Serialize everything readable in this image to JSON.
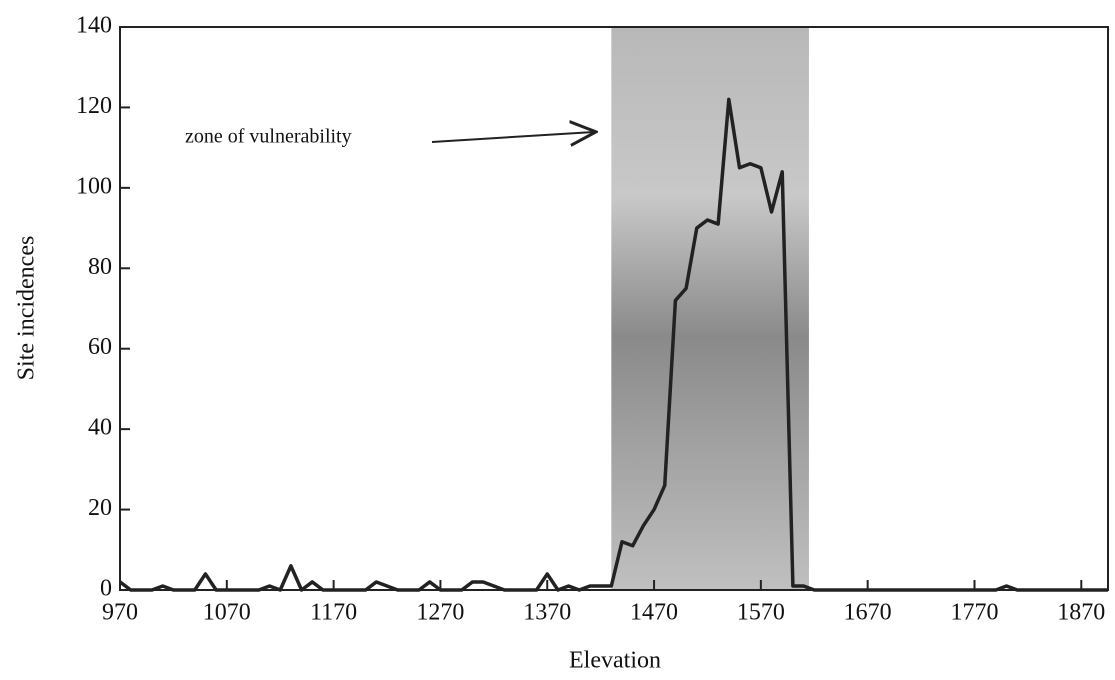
{
  "chart_data": {
    "type": "line",
    "xlabel": "Elevation",
    "ylabel": "Site incidences",
    "annotation": "zone of vulnerability",
    "zone": [
      1430,
      1615
    ],
    "x": [
      970,
      980,
      1000,
      1010,
      1020,
      1040,
      1050,
      1060,
      1080,
      1100,
      1110,
      1120,
      1130,
      1140,
      1150,
      1160,
      1200,
      1210,
      1220,
      1230,
      1250,
      1260,
      1270,
      1290,
      1300,
      1310,
      1320,
      1330,
      1360,
      1370,
      1380,
      1390,
      1400,
      1410,
      1430,
      1440,
      1450,
      1460,
      1470,
      1480,
      1490,
      1500,
      1510,
      1520,
      1530,
      1540,
      1550,
      1560,
      1570,
      1580,
      1590,
      1600,
      1610,
      1620,
      1700,
      1720,
      1750,
      1760,
      1790,
      1800,
      1810,
      1895
    ],
    "series": [
      {
        "name": "Site incidences",
        "color": "#222222",
        "values": [
          2,
          0,
          0,
          1,
          0,
          0,
          4,
          0,
          0,
          0,
          1,
          0,
          6,
          0,
          2,
          0,
          0,
          2,
          1,
          0,
          0,
          2,
          0,
          0,
          2,
          2,
          1,
          0,
          0,
          4,
          0,
          1,
          0,
          1,
          1,
          12,
          11,
          16,
          20,
          26,
          72,
          75,
          90,
          92,
          91,
          122,
          105,
          106,
          105,
          94,
          104,
          1,
          1,
          0,
          0,
          0,
          0,
          0,
          0,
          1,
          0,
          0
        ]
      }
    ],
    "xlim": [
      970,
      1895
    ],
    "xticks": [
      970,
      1070,
      1170,
      1270,
      1370,
      1470,
      1570,
      1670,
      1770,
      1870
    ],
    "ylim": [
      0,
      140
    ],
    "yticks": [
      0,
      20,
      40,
      60,
      80,
      100,
      120,
      140
    ]
  }
}
